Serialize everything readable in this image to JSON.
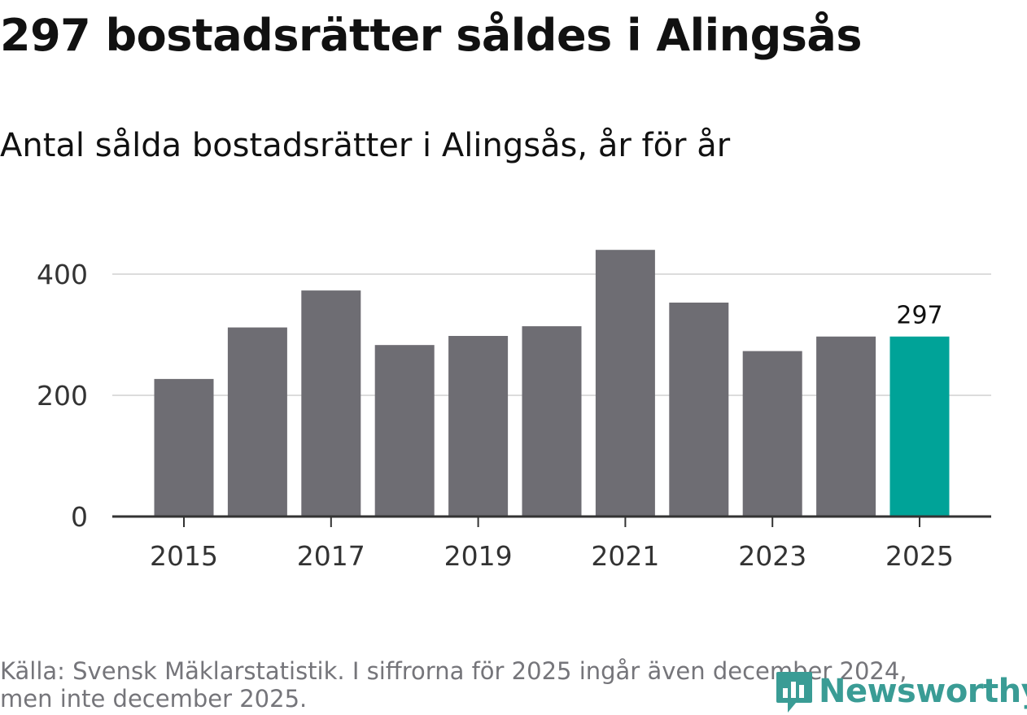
{
  "header": {
    "title": "297 bostadsrätter såldes i Alingsås",
    "subtitle": "Antal sålda bostadsrätter i Alingsås, år för år"
  },
  "footer": {
    "source_line1": "Källa: Svensk Mäklarstatistik. I siffrorna för 2025 ingår även december 2024,",
    "source_line2": "men inte december 2025.",
    "logo_text": "Newsworthy"
  },
  "colors": {
    "bar": "#6e6d73",
    "highlight": "#00a398",
    "grid": "#dcdcdc",
    "axis": "#333333",
    "logo": "#3a9c95"
  },
  "chart_data": {
    "type": "bar",
    "title": "Antal sålda bostadsrätter i Alingsås, år för år",
    "xlabel": "",
    "ylabel": "",
    "categories": [
      "2015",
      "2016",
      "2017",
      "2018",
      "2019",
      "2020",
      "2021",
      "2022",
      "2023",
      "2024",
      "2025"
    ],
    "values": [
      227,
      312,
      373,
      283,
      298,
      314,
      440,
      353,
      273,
      297,
      297
    ],
    "highlight_index": 10,
    "highlight_label": "297",
    "x_tick_labels": [
      "2015",
      "2017",
      "2019",
      "2021",
      "2023",
      "2025"
    ],
    "y_ticks": [
      0,
      200,
      400
    ],
    "y_tick_labels": [
      "0",
      "200",
      "400"
    ],
    "ylim": [
      0,
      450
    ],
    "grid": true,
    "legend": "none"
  }
}
